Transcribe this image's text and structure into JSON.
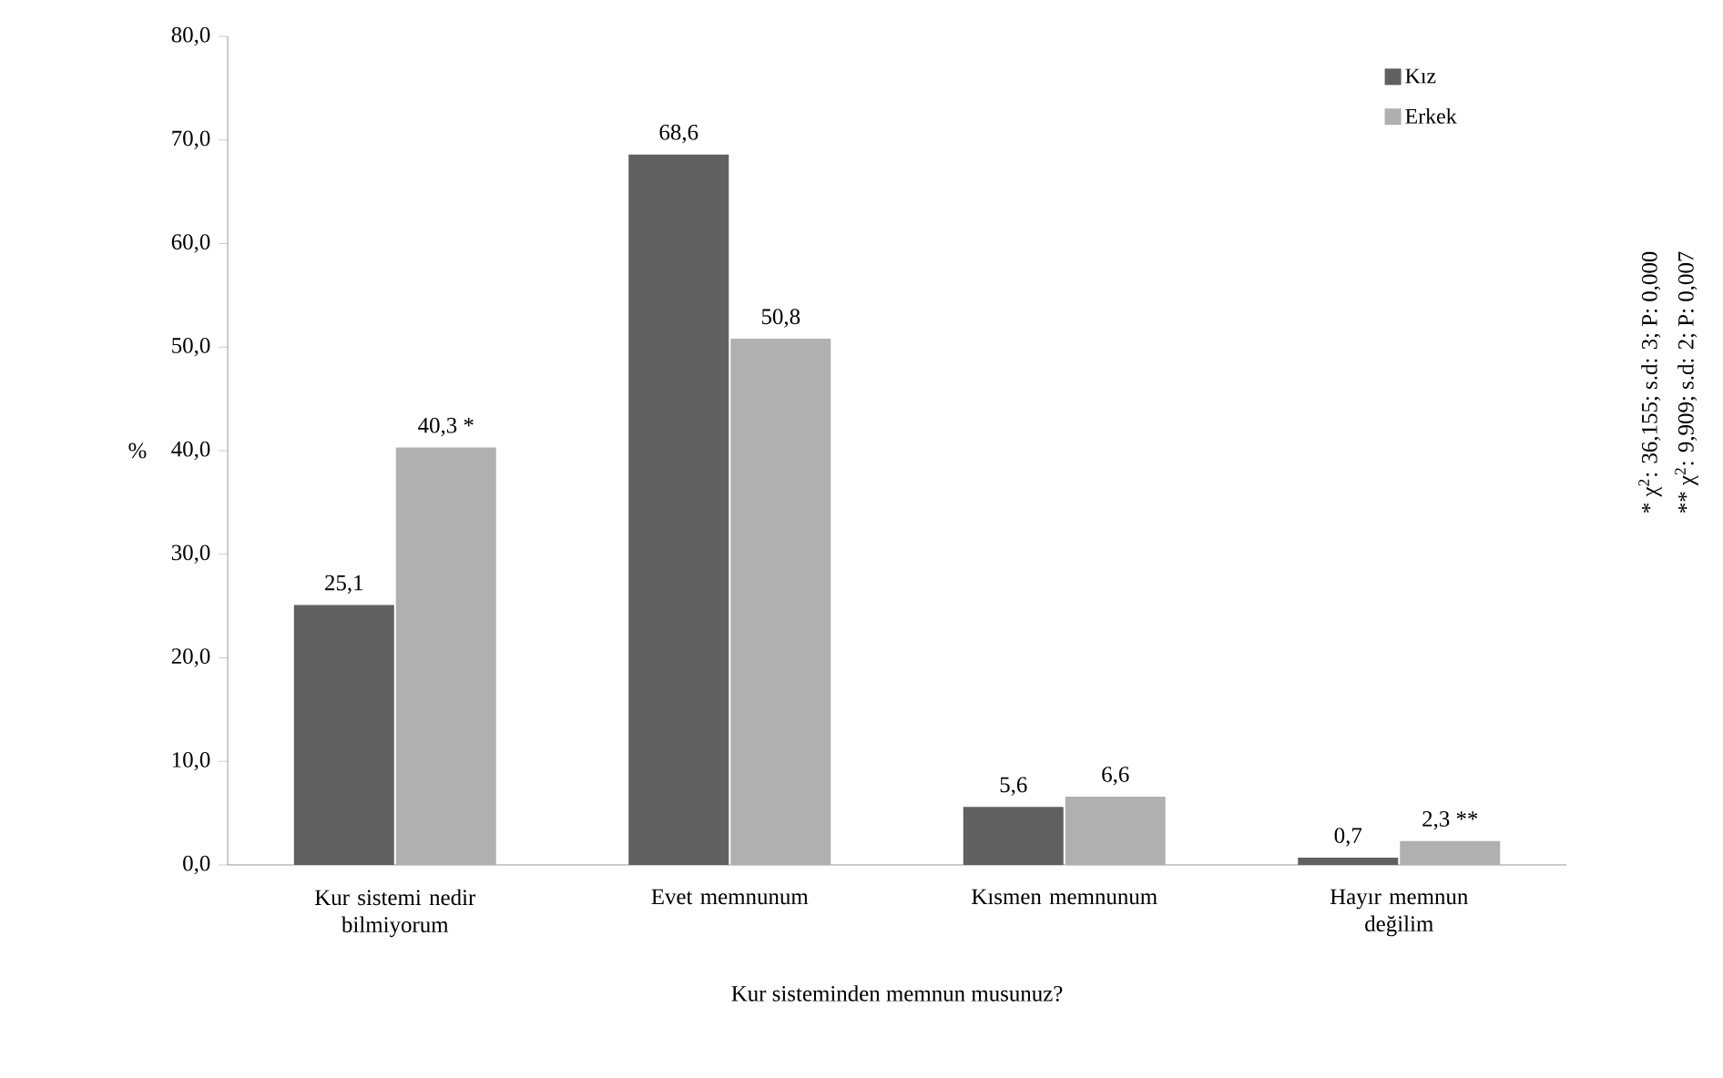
{
  "chart_data": {
    "type": "bar",
    "xlabel": "Kur sisteminden memnun musunuz?",
    "ylabel": "%",
    "categories": [
      "Kur sistemi nedir bilmiyorum",
      "Evet memnunum",
      "Kısmen memnunum",
      "Hayır memnun değilim"
    ],
    "series": [
      {
        "name": "Kız",
        "color": "#606060",
        "values": [
          25.1,
          68.6,
          5.6,
          0.7
        ],
        "value_labels": [
          "25,1",
          "68,6",
          "5,6",
          "0,7"
        ]
      },
      {
        "name": "Erkek",
        "color": "#b0b0b0",
        "values": [
          40.3,
          50.8,
          6.6,
          2.3
        ],
        "value_labels": [
          "40,3 *",
          "50,8",
          "6,6",
          "2,3 **"
        ]
      }
    ],
    "ylim": [
      0,
      80
    ],
    "yticks": [
      {
        "value": 0,
        "label": "0,0"
      },
      {
        "value": 10,
        "label": "10,0"
      },
      {
        "value": 20,
        "label": "20,0"
      },
      {
        "value": 30,
        "label": "30,0"
      },
      {
        "value": 40,
        "label": "40,0"
      },
      {
        "value": 50,
        "label": "50,0"
      },
      {
        "value": 60,
        "label": "60,0"
      },
      {
        "value": 70,
        "label": "70,0"
      },
      {
        "value": 80,
        "label": "80,0"
      }
    ],
    "grid": false,
    "legend": "top right",
    "annotations": [
      "* χ$^{2}$: 36,155; s.d: 3; P: 0,000",
      "** χ$^{2}$: 9,909; s.d: 2; P: 0,007"
    ]
  }
}
